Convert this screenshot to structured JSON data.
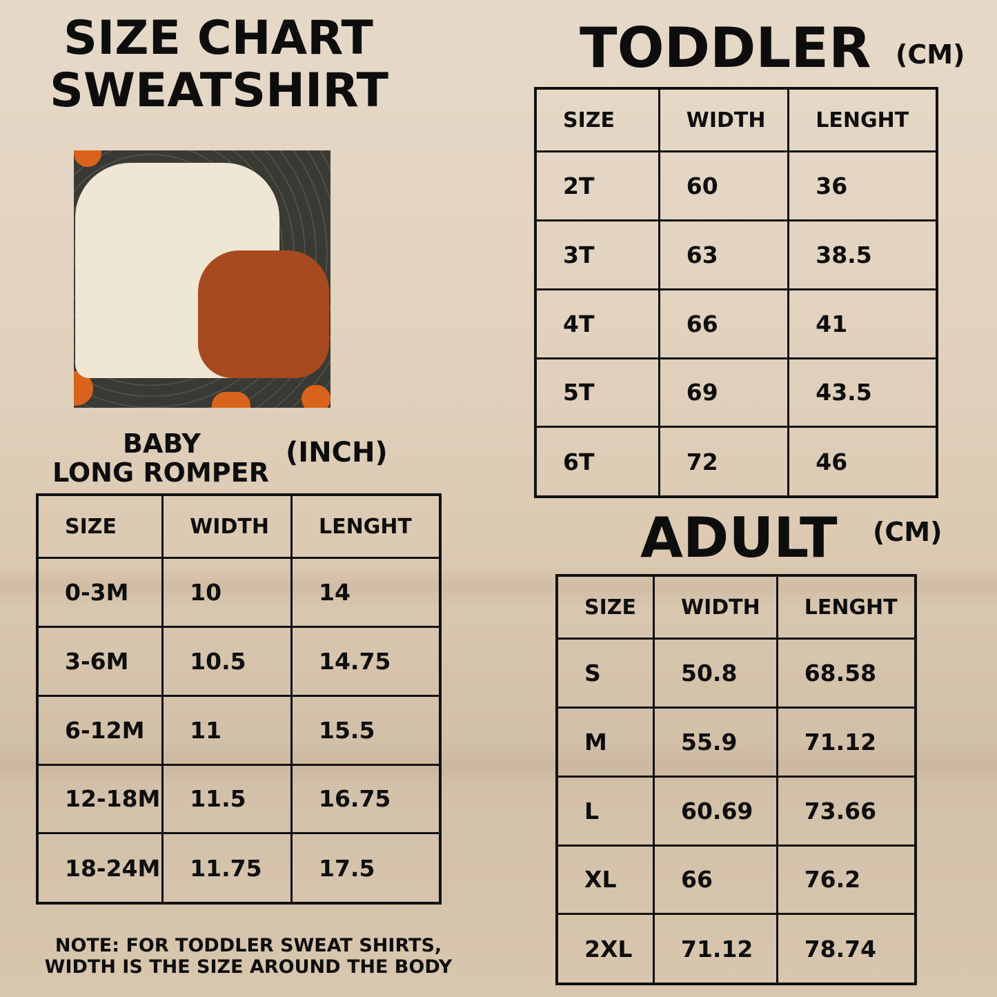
{
  "header": {
    "line1": "SIZE CHART",
    "line2": "SWEATSHIRT"
  },
  "toddler": {
    "title": "TODDLER",
    "unit": "(CM)",
    "columns": [
      "SIZE",
      "WIDTH",
      "LENGHT"
    ],
    "rows": [
      [
        "2T",
        "60",
        "36"
      ],
      [
        "3T",
        "63",
        "38.5"
      ],
      [
        "4T",
        "66",
        "41"
      ],
      [
        "5T",
        "69",
        "43.5"
      ],
      [
        "6T",
        "72",
        "46"
      ]
    ]
  },
  "baby": {
    "title_line1": "BABY",
    "title_line2": "LONG ROMPER",
    "unit": "(INCH)",
    "columns": [
      "SIZE",
      "WIDTH",
      "LENGHT"
    ],
    "rows": [
      [
        "0-3M",
        "10",
        "14"
      ],
      [
        "3-6M",
        "10.5",
        "14.75"
      ],
      [
        "6-12M",
        "11",
        "15.5"
      ],
      [
        "12-18M",
        "11.5",
        "16.75"
      ],
      [
        "18-24M",
        "11.75",
        "17.5"
      ]
    ]
  },
  "adult": {
    "title": "ADULT",
    "unit": "(CM)",
    "columns": [
      "SIZE",
      "WIDTH",
      "LENGHT"
    ],
    "rows": [
      [
        "S",
        "50.8",
        "68.58"
      ],
      [
        "M",
        "55.9",
        "71.12"
      ],
      [
        "L",
        "60.69",
        "73.66"
      ],
      [
        "XL",
        "66",
        "76.2"
      ],
      [
        "2XL",
        "71.12",
        "78.74"
      ]
    ]
  },
  "note": {
    "line1": "NOTE: FOR TODDLER SWEAT SHIRTS,",
    "line2": "WIDTH IS THE SIZE AROUND THE BODY"
  },
  "colors": {
    "text": "#0d0d0d",
    "background": "#e2d3bf",
    "sweatshirt": "#efe6d3",
    "romper": "#a84a1f",
    "pumpkin": "#d9631c"
  }
}
